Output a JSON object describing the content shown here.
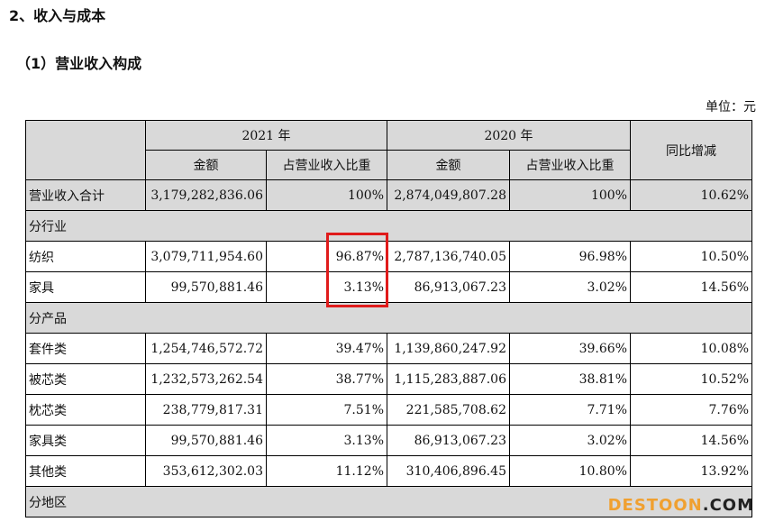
{
  "section_title": "2、收入与成本",
  "subsection_title": "（1）营业收入构成",
  "unit_label": "单位：元",
  "table": {
    "year_2021": "2021 年",
    "year_2020": "2020 年",
    "col_amount": "金额",
    "col_ratio": "占营业收入比重",
    "col_yoy": "同比增减",
    "rows": [
      {
        "label": "营业收入合计",
        "a2021": "3,179,282,836.06",
        "r2021": "100%",
        "a2020": "2,874,049,807.28",
        "r2020": "100%",
        "yoy": "10.62%"
      },
      {
        "label": "分行业",
        "section": true
      },
      {
        "label": "纺织",
        "a2021": "3,079,711,954.60",
        "r2021": "96.87%",
        "a2020": "2,787,136,740.05",
        "r2020": "96.98%",
        "yoy": "10.50%"
      },
      {
        "label": "家具",
        "a2021": "99,570,881.46",
        "r2021": "3.13%",
        "a2020": "86,913,067.23",
        "r2020": "3.02%",
        "yoy": "14.56%"
      },
      {
        "label": "分产品",
        "section": true
      },
      {
        "label": "套件类",
        "a2021": "1,254,746,572.72",
        "r2021": "39.47%",
        "a2020": "1,139,860,247.92",
        "r2020": "39.66%",
        "yoy": "10.08%"
      },
      {
        "label": "被芯类",
        "a2021": "1,232,573,262.54",
        "r2021": "38.77%",
        "a2020": "1,115,283,887.06",
        "r2020": "38.81%",
        "yoy": "10.52%"
      },
      {
        "label": "枕芯类",
        "a2021": "238,779,817.31",
        "r2021": "7.51%",
        "a2020": "221,585,708.62",
        "r2020": "7.71%",
        "yoy": "7.76%"
      },
      {
        "label": "家具类",
        "a2021": "99,570,881.46",
        "r2021": "3.13%",
        "a2020": "86,913,067.23",
        "r2020": "3.02%",
        "yoy": "14.56%"
      },
      {
        "label": "其他类",
        "a2021": "353,612,302.03",
        "r2021": "11.12%",
        "a2020": "310,406,896.45",
        "r2020": "10.80%",
        "yoy": "13.92%"
      },
      {
        "label": "分地区",
        "section": true
      }
    ]
  },
  "watermark": {
    "part1": "DESTOON",
    "part2": ".COM"
  },
  "colors": {
    "header_fill": "#d9d9d9",
    "highlight": "#e01b1b",
    "watermark_orange": "#f0a030"
  }
}
